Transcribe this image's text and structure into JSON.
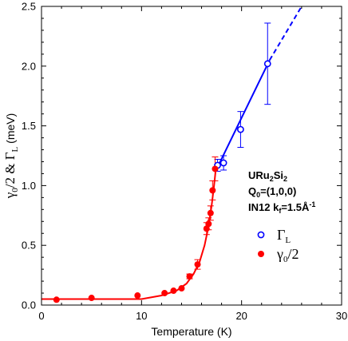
{
  "chart_data": {
    "type": "scatter",
    "xlabel": "Temperature (K)",
    "ylabel": {
      "gamma": "γ",
      "sub0": "0",
      "rest": "/2 & Γ",
      "subL": "L",
      "unit": " (meV)"
    },
    "xlim": [
      0,
      30
    ],
    "ylim": [
      0,
      2.5
    ],
    "x_ticks": [
      "0",
      "10",
      "20",
      "30"
    ],
    "y_ticks": [
      "0.0",
      "0.5",
      "1.0",
      "1.5",
      "2.0",
      "2.5"
    ],
    "annotation": {
      "line1_a": "URu",
      "line1_sub1": "2",
      "line1_b": "Si",
      "line1_sub2": "2",
      "line2_a": "Q",
      "line2_sub": "0",
      "line2_b": "=(1,0,0)",
      "line3_a": "IN12 k",
      "line3_sub": "f",
      "line3_b": "=1.5Å",
      "line3_sup": "-1"
    },
    "legend": [
      {
        "symbol": "open-circle",
        "color": "#0000ff",
        "label_main": "Γ",
        "label_sub": "L"
      },
      {
        "symbol": "filled-circle",
        "color": "#ff0000",
        "label_main": "γ",
        "label_sub": "0",
        "label_rest": "/2"
      }
    ],
    "series": [
      {
        "key": "gammaL",
        "color": "#0000ff",
        "marker": "open-circle",
        "points": [
          {
            "x": 17.6,
            "y": 1.17,
            "err": 0.05
          },
          {
            "x": 18.2,
            "y": 1.19,
            "err": 0.06
          },
          {
            "x": 19.9,
            "y": 1.47,
            "err": 0.15
          },
          {
            "x": 22.6,
            "y": 2.02,
            "err": 0.34
          }
        ]
      },
      {
        "key": "gamma0",
        "color": "#ff0000",
        "marker": "filled-circle",
        "points": [
          {
            "x": 1.5,
            "y": 0.045,
            "err": 0
          },
          {
            "x": 5.0,
            "y": 0.06,
            "err": 0
          },
          {
            "x": 9.6,
            "y": 0.08,
            "err": 0
          },
          {
            "x": 12.3,
            "y": 0.1,
            "err": 0
          },
          {
            "x": 13.2,
            "y": 0.12,
            "err": 0
          },
          {
            "x": 14.0,
            "y": 0.14,
            "err": 0
          },
          {
            "x": 14.8,
            "y": 0.24,
            "err": 0.02
          },
          {
            "x": 15.6,
            "y": 0.34,
            "err": 0.04
          },
          {
            "x": 16.5,
            "y": 0.64,
            "err": 0.05
          },
          {
            "x": 16.7,
            "y": 0.68,
            "err": 0.05
          },
          {
            "x": 16.9,
            "y": 0.77,
            "err": 0.06
          },
          {
            "x": 17.1,
            "y": 0.96,
            "err": 0.08
          },
          {
            "x": 17.35,
            "y": 1.14,
            "err": 0.1
          }
        ]
      }
    ],
    "fits": [
      {
        "key": "red-fit",
        "color": "#ff0000",
        "style": "solid",
        "points": [
          [
            0,
            0.05
          ],
          [
            10,
            0.05
          ],
          [
            12,
            0.08
          ],
          [
            13.5,
            0.12
          ],
          [
            14.5,
            0.18
          ],
          [
            15.2,
            0.26
          ],
          [
            15.8,
            0.36
          ],
          [
            16.3,
            0.5
          ],
          [
            16.7,
            0.66
          ],
          [
            17.0,
            0.83
          ],
          [
            17.25,
            1.0
          ],
          [
            17.4,
            1.12
          ],
          [
            17.5,
            1.15
          ]
        ]
      },
      {
        "key": "blue-fit",
        "color": "#0000ff",
        "style": "solid",
        "points": [
          [
            17.4,
            1.12
          ],
          [
            22.8,
            2.05
          ]
        ]
      },
      {
        "key": "blue-extrapolation",
        "color": "#0000ff",
        "style": "dashed",
        "points": [
          [
            22.8,
            2.05
          ],
          [
            26.0,
            2.5
          ]
        ]
      }
    ]
  }
}
